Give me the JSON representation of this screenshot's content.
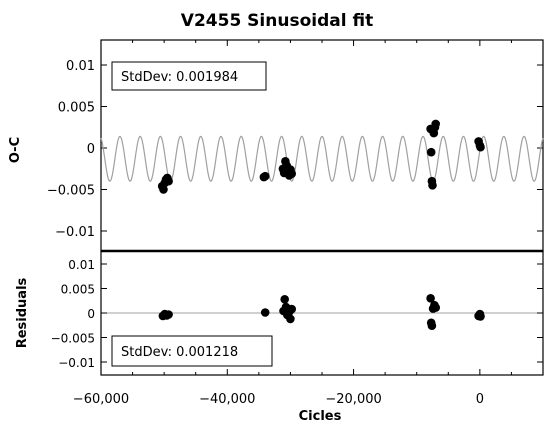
{
  "chart_data": [
    {
      "panel": "top",
      "type": "scatter",
      "title": "V2455 Sinusoidal fit",
      "ylabel": "O-C",
      "xlabel": "",
      "xlim": [
        -60000,
        10000
      ],
      "ylim": [
        -0.012,
        0.012
      ],
      "yticks": [
        0.01,
        0.005,
        0,
        -0.005,
        -0.01
      ],
      "ytick_labels": [
        "0.01",
        "0.005",
        "0",
        "−0.005",
        "−0.01"
      ],
      "annotation": "StdDev: 0.001984",
      "fit": {
        "type": "sinusoid",
        "offset": -0.0013,
        "amplitude": 0.0027,
        "period_cycles": 3200,
        "phase_cycle": -57000,
        "color": "#a0a0a0"
      },
      "points": [
        {
          "x": -50300,
          "y": -0.0046
        },
        {
          "x": -50100,
          "y": -0.005
        },
        {
          "x": -49900,
          "y": -0.0042
        },
        {
          "x": -49700,
          "y": -0.0038
        },
        {
          "x": -49500,
          "y": -0.0036
        },
        {
          "x": -49300,
          "y": -0.004
        },
        {
          "x": -34200,
          "y": -0.0035
        },
        {
          "x": -34000,
          "y": -0.0034
        },
        {
          "x": -31200,
          "y": -0.0025
        },
        {
          "x": -31000,
          "y": -0.003
        },
        {
          "x": -30800,
          "y": -0.0016
        },
        {
          "x": -30600,
          "y": -0.0021
        },
        {
          "x": -30400,
          "y": -0.0029
        },
        {
          "x": -30200,
          "y": -0.0033
        },
        {
          "x": -30000,
          "y": -0.0026
        },
        {
          "x": -29800,
          "y": -0.0031
        },
        {
          "x": -7800,
          "y": 0.0023
        },
        {
          "x": -7700,
          "y": -0.0005
        },
        {
          "x": -7600,
          "y": -0.004
        },
        {
          "x": -7500,
          "y": -0.0045
        },
        {
          "x": -7300,
          "y": 0.0018
        },
        {
          "x": -7100,
          "y": 0.0025
        },
        {
          "x": -7000,
          "y": 0.0029
        },
        {
          "x": -200,
          "y": 0.0008
        },
        {
          "x": 0,
          "y": 0.0003
        },
        {
          "x": 100,
          "y": 0.0001
        }
      ]
    },
    {
      "panel": "bottom",
      "type": "scatter",
      "title": "",
      "ylabel": "Residuals",
      "xlabel": "Cicles",
      "xlim": [
        -60000,
        10000
      ],
      "ylim": [
        -0.012,
        0.012
      ],
      "yticks": [
        0.01,
        0.005,
        0,
        -0.005,
        -0.01
      ],
      "ytick_labels": [
        "0.01",
        "0.005",
        "0",
        "−0.005",
        "−0.01"
      ],
      "xticks": [
        -60000,
        -40000,
        -20000,
        0
      ],
      "xtick_labels": [
        "−60,000",
        "−40,000",
        "−20,000",
        "0"
      ],
      "annotation": "StdDev: 0.001218",
      "zero_line_color": "#a0a0a0",
      "points": [
        {
          "x": -50200,
          "y": -0.0006
        },
        {
          "x": -49900,
          "y": -0.0002
        },
        {
          "x": -49600,
          "y": -0.0005
        },
        {
          "x": -49300,
          "y": -0.0003
        },
        {
          "x": -34000,
          "y": 0.0001
        },
        {
          "x": -31100,
          "y": 0.0004
        },
        {
          "x": -30900,
          "y": 0.0028
        },
        {
          "x": -30700,
          "y": 0.0012
        },
        {
          "x": -30500,
          "y": -0.0004
        },
        {
          "x": -30200,
          "y": 0.0002
        },
        {
          "x": -30000,
          "y": -0.0012
        },
        {
          "x": -29800,
          "y": 0.0008
        },
        {
          "x": -7800,
          "y": 0.003
        },
        {
          "x": -7700,
          "y": -0.002
        },
        {
          "x": -7600,
          "y": -0.0026
        },
        {
          "x": -7400,
          "y": 0.0009
        },
        {
          "x": -7200,
          "y": 0.0016
        },
        {
          "x": -7000,
          "y": 0.0011
        },
        {
          "x": -200,
          "y": -0.0006
        },
        {
          "x": 0,
          "y": -0.0002
        },
        {
          "x": 100,
          "y": -0.0007
        }
      ]
    }
  ]
}
